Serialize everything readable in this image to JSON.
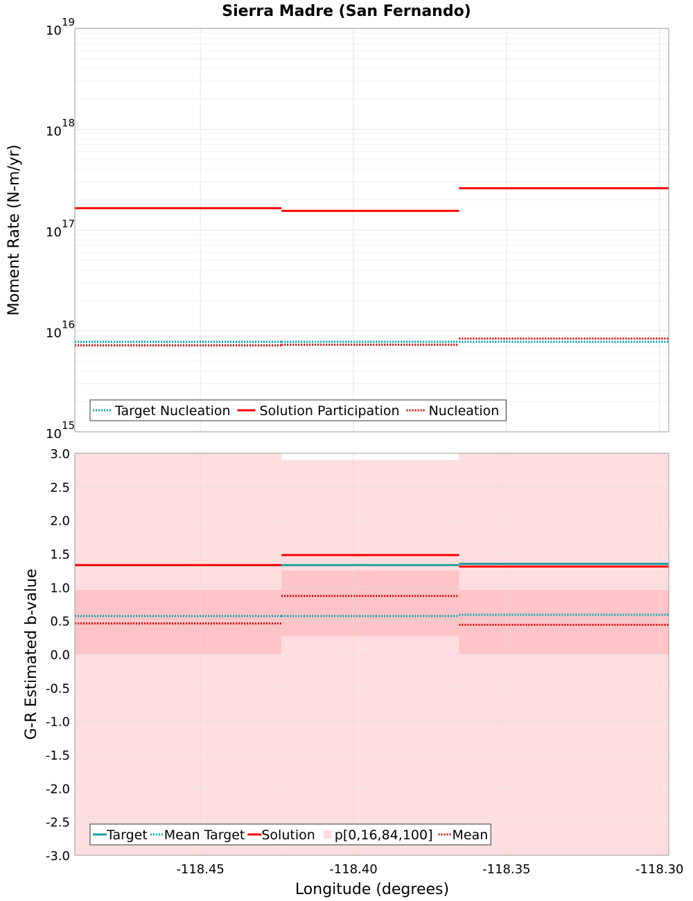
{
  "chart_data": [
    {
      "type": "line",
      "title": "Sierra Madre (San Fernando)",
      "xlabel": "",
      "ylabel": "Moment Rate (N-m/yr)",
      "yscale": "log",
      "ylim": [
        1000000000000000.0,
        1e+19
      ],
      "xlim": [
        -118.491,
        -118.297
      ],
      "grid": true,
      "legend_position": "bottom-left",
      "y_tick_labels": [
        {
          "value": 1000000000000000.0,
          "base": "10",
          "exp": "15"
        },
        {
          "value": 1e+16,
          "base": "10",
          "exp": "16"
        },
        {
          "value": 1e+17,
          "base": "10",
          "exp": "17"
        },
        {
          "value": 1e+18,
          "base": "10",
          "exp": "18"
        },
        {
          "value": 1e+19,
          "base": "10",
          "exp": "19"
        }
      ],
      "segments": [
        {
          "x0": -118.491,
          "x1": -118.4235
        },
        {
          "x0": -118.4235,
          "x1": -118.3655
        },
        {
          "x0": -118.3655,
          "x1": -118.297
        }
      ],
      "series": [
        {
          "name": "Target Nucleation",
          "color": "#00a8b4",
          "style": "dotted",
          "values": [
            7800000000000000.0,
            7800000000000000.0,
            7800000000000000.0
          ]
        },
        {
          "name": "Solution Participation",
          "color": "#ff0000",
          "style": "solid",
          "values": [
            1.65e+17,
            1.55e+17,
            2.6e+17
          ]
        },
        {
          "name": "Nucleation",
          "color": "#e00000",
          "style": "dotted",
          "values": [
            7200000000000000.0,
            7300000000000000.0,
            8400000000000000.0
          ]
        }
      ]
    },
    {
      "type": "line",
      "title": "",
      "xlabel": "Longitude (degrees)",
      "ylabel": "G-R Estimated b-value",
      "yscale": "linear",
      "ylim": [
        -3.0,
        3.0
      ],
      "xlim": [
        -118.491,
        -118.297
      ],
      "grid": true,
      "legend_position": "bottom-left",
      "y_ticks": [
        3.0,
        2.5,
        2.0,
        1.5,
        1.0,
        0.5,
        0.0,
        -0.5,
        -1.0,
        -1.5,
        -2.0,
        -2.5,
        -3.0
      ],
      "y_tick_labels": [
        "3.0",
        "2.5",
        "2.0",
        "1.5",
        "1.0",
        "0.5",
        "0.0",
        "-0.5",
        "-1.0",
        "-1.5",
        "-2.0",
        "-2.5",
        "-3.0"
      ],
      "x_ticks": [
        -118.45,
        -118.4,
        -118.35,
        -118.3
      ],
      "x_tick_labels": [
        "-118.45",
        "-118.40",
        "-118.35",
        "-118.30"
      ],
      "segments": [
        {
          "x0": -118.491,
          "x1": -118.4235
        },
        {
          "x0": -118.4235,
          "x1": -118.3655
        },
        {
          "x0": -118.3655,
          "x1": -118.297
        }
      ],
      "percentile_bands": {
        "name": "p[0,16,84,100]",
        "outer_color": "#ffdde0",
        "inner_color": "#ffc4c7",
        "p0": [
          -3.0,
          -3.0,
          -3.0
        ],
        "p16": [
          0.0,
          0.27,
          0.0
        ],
        "p84": [
          0.96,
          1.25,
          0.96
        ],
        "p100": [
          3.0,
          2.9,
          3.0
        ]
      },
      "series": [
        {
          "name": "Target",
          "color": "#20a0a0",
          "style": "solid",
          "values": [
            1.33,
            1.33,
            1.35
          ]
        },
        {
          "name": "Mean Target",
          "color": "#00a8b4",
          "style": "dotted",
          "values": [
            0.57,
            0.57,
            0.59
          ]
        },
        {
          "name": "Solution",
          "color": "#ff0000",
          "style": "solid",
          "values": [
            1.33,
            1.48,
            1.31
          ]
        },
        {
          "name": "Mean",
          "color": "#e00000",
          "style": "dotted",
          "values": [
            0.46,
            0.87,
            0.44
          ]
        }
      ],
      "legend_order": [
        "Target",
        "Mean Target",
        "Solution",
        "p[0,16,84,100]",
        "Mean"
      ]
    }
  ]
}
